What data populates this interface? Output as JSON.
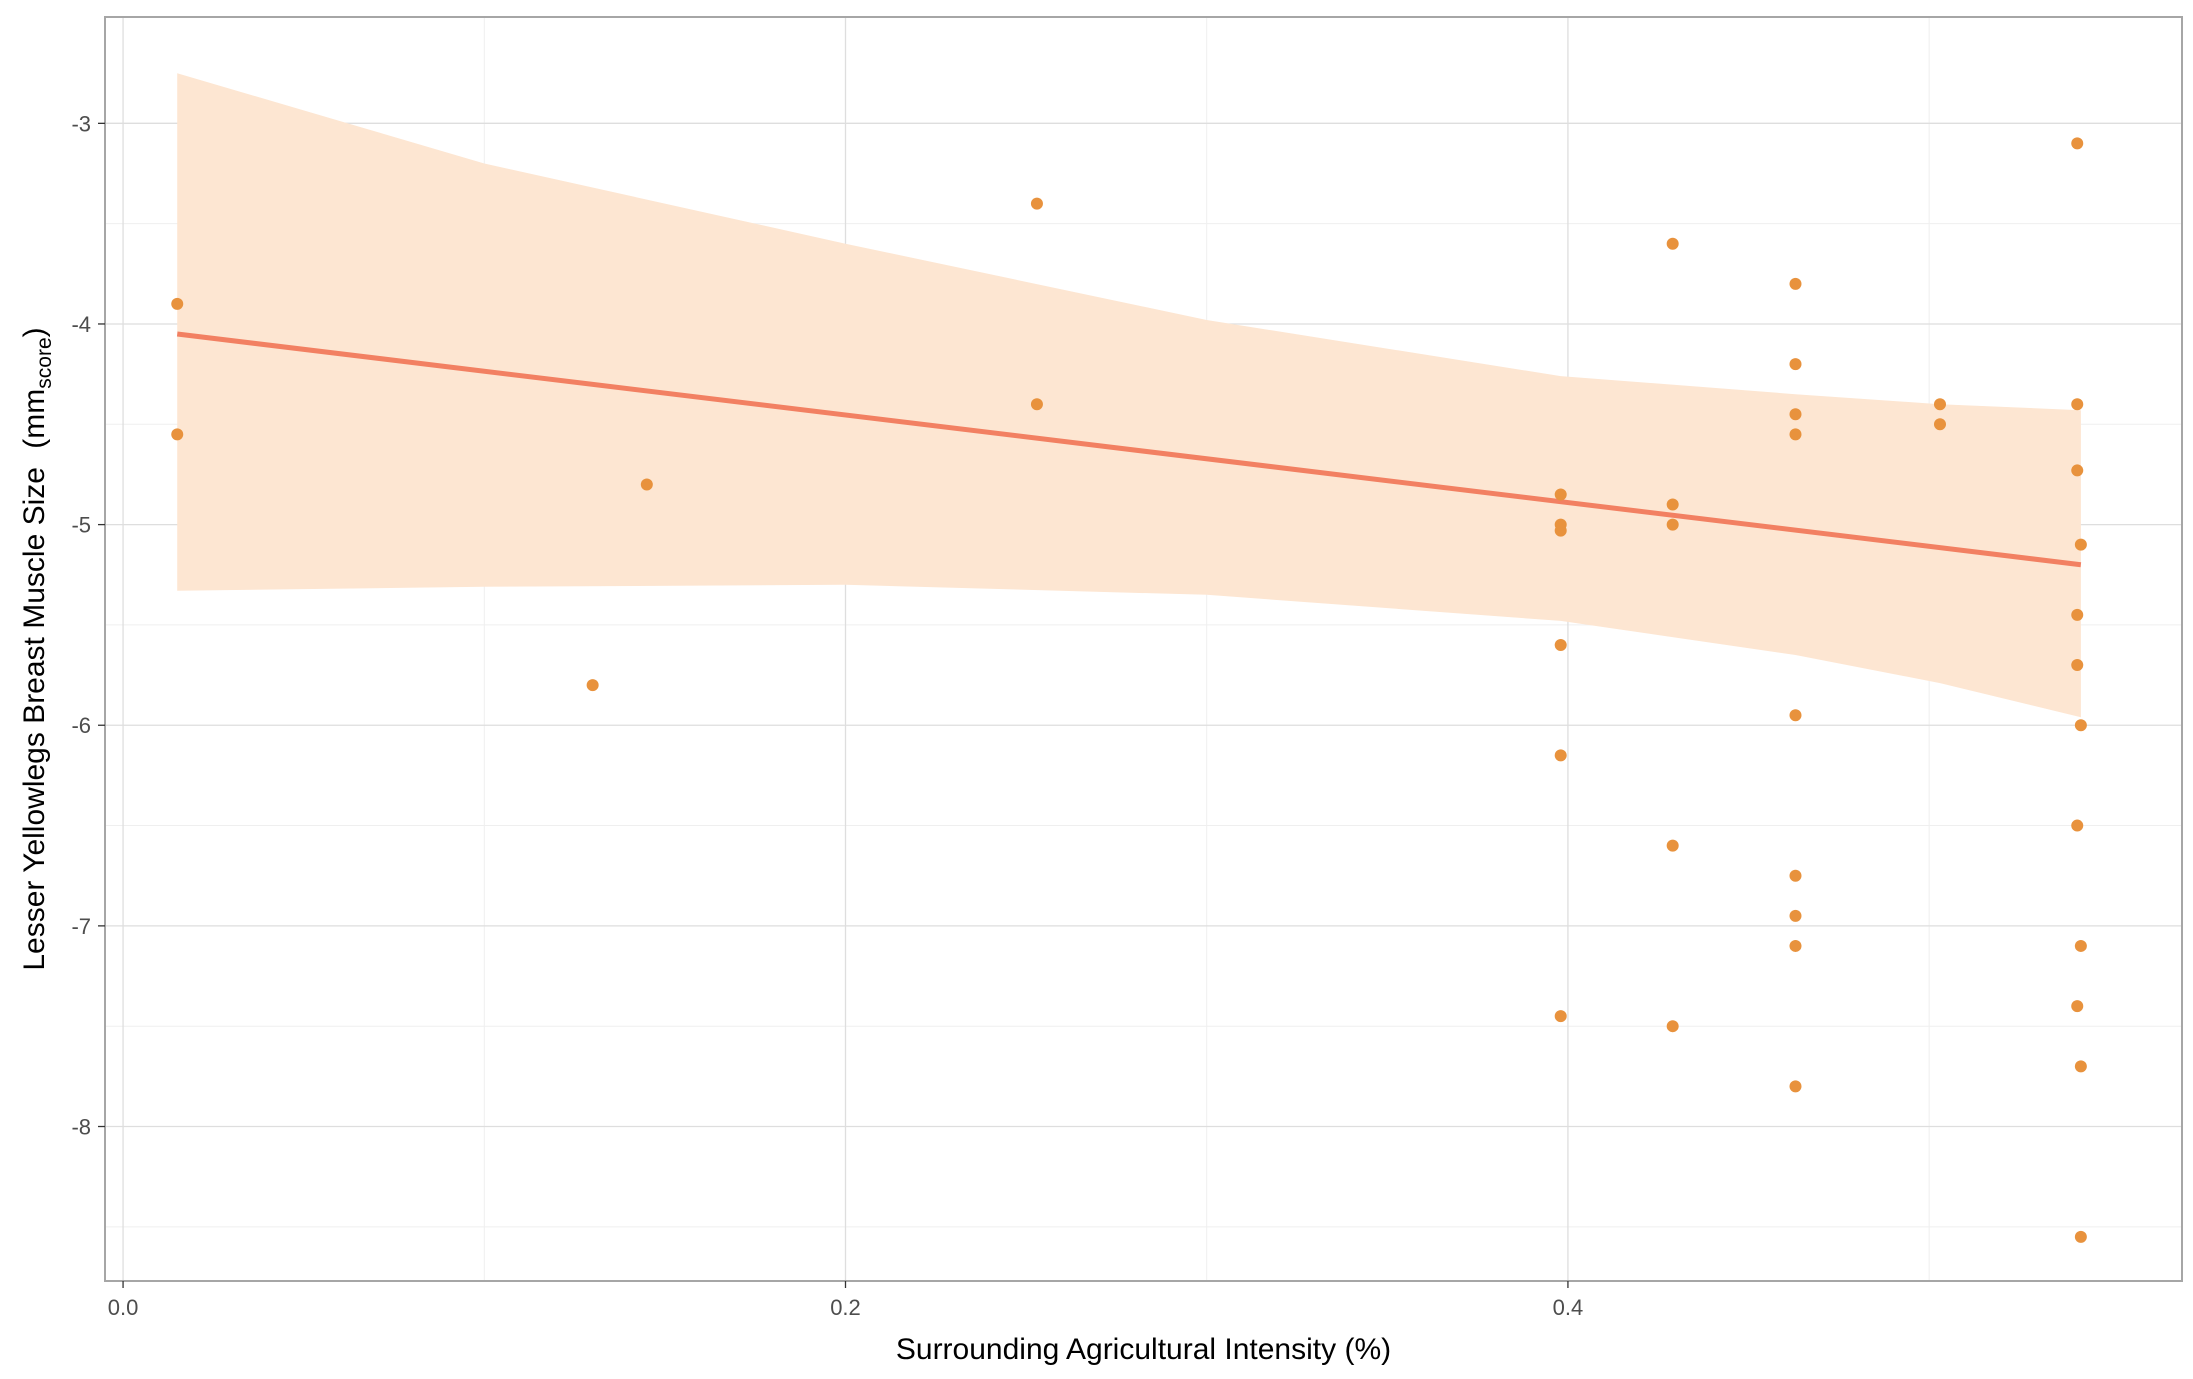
{
  "chart_data": {
    "type": "scatter",
    "xlabel": "Surrounding Agricultural Intensity (%)",
    "ylabel": {
      "main": "Lesser Yellowlegs Breast Muscle Size",
      "unit_base": "mm",
      "unit_subscript": "score"
    },
    "xlim": [
      -0.005,
      0.57
    ],
    "ylim": [
      -8.77,
      -2.47
    ],
    "x_ticks": [
      0.0,
      0.2,
      0.4
    ],
    "x_tick_labels": [
      "0.0",
      "0.2",
      "0.4"
    ],
    "y_ticks": [
      -3,
      -4,
      -5,
      -6,
      -7,
      -8
    ],
    "y_tick_labels": [
      "-3",
      "-4",
      "-5",
      "-6",
      "-7",
      "-8"
    ],
    "x_minor_grid": [
      0.1,
      0.3,
      0.5
    ],
    "y_minor_grid": [
      -3.5,
      -4.5,
      -5.5,
      -6.5,
      -7.5,
      -8.5
    ],
    "grid": true,
    "points": [
      {
        "x": 0.015,
        "y": -3.9
      },
      {
        "x": 0.015,
        "y": -4.55
      },
      {
        "x": 0.13,
        "y": -5.8
      },
      {
        "x": 0.145,
        "y": -4.8
      },
      {
        "x": 0.253,
        "y": -3.4
      },
      {
        "x": 0.253,
        "y": -4.4
      },
      {
        "x": 0.398,
        "y": -4.85
      },
      {
        "x": 0.398,
        "y": -5.0
      },
      {
        "x": 0.398,
        "y": -5.03
      },
      {
        "x": 0.398,
        "y": -5.6
      },
      {
        "x": 0.398,
        "y": -6.15
      },
      {
        "x": 0.398,
        "y": -7.45
      },
      {
        "x": 0.429,
        "y": -3.6
      },
      {
        "x": 0.429,
        "y": -4.9
      },
      {
        "x": 0.429,
        "y": -5.0
      },
      {
        "x": 0.429,
        "y": -6.6
      },
      {
        "x": 0.429,
        "y": -7.5
      },
      {
        "x": 0.463,
        "y": -3.8
      },
      {
        "x": 0.463,
        "y": -4.2
      },
      {
        "x": 0.463,
        "y": -4.45
      },
      {
        "x": 0.463,
        "y": -4.55
      },
      {
        "x": 0.463,
        "y": -5.95
      },
      {
        "x": 0.463,
        "y": -6.75
      },
      {
        "x": 0.463,
        "y": -6.95
      },
      {
        "x": 0.463,
        "y": -7.1
      },
      {
        "x": 0.463,
        "y": -7.8
      },
      {
        "x": 0.503,
        "y": -4.4
      },
      {
        "x": 0.503,
        "y": -4.5
      },
      {
        "x": 0.541,
        "y": -3.1
      },
      {
        "x": 0.541,
        "y": -4.4
      },
      {
        "x": 0.541,
        "y": -4.73
      },
      {
        "x": 0.542,
        "y": -5.1
      },
      {
        "x": 0.541,
        "y": -5.45
      },
      {
        "x": 0.541,
        "y": -5.7
      },
      {
        "x": 0.542,
        "y": -6.0
      },
      {
        "x": 0.541,
        "y": -6.5
      },
      {
        "x": 0.542,
        "y": -7.1
      },
      {
        "x": 0.541,
        "y": -7.4
      },
      {
        "x": 0.542,
        "y": -7.7
      },
      {
        "x": 0.542,
        "y": -8.55
      }
    ],
    "trend_line": {
      "x": [
        0.015,
        0.542
      ],
      "y": [
        -4.05,
        -5.2
      ]
    },
    "confidence_band": {
      "x": [
        0.015,
        0.1,
        0.2,
        0.3,
        0.398,
        0.463,
        0.503,
        0.542
      ],
      "upper": [
        -2.75,
        -3.2,
        -3.6,
        -3.98,
        -4.26,
        -4.35,
        -4.4,
        -4.43
      ],
      "lower": [
        -5.33,
        -5.31,
        -5.3,
        -5.35,
        -5.48,
        -5.65,
        -5.79,
        -5.96
      ]
    },
    "colors": {
      "point": "#E8923D",
      "trend_line": "#F28062",
      "band": "#FDE6D2",
      "grid_major": "#DEDEDE",
      "grid_minor": "#EFEFEF",
      "panel_border": "#A6A6A6",
      "tick_text": "#4D4D4D"
    }
  }
}
